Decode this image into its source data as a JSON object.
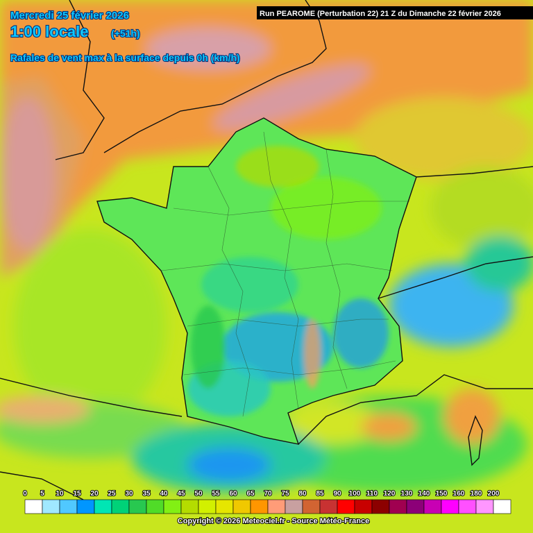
{
  "header": {
    "date": "Mercredi 25 février 2026",
    "time": "1:00 locale",
    "offset": "(+51h)",
    "parameter": "Rafales de vent max à la surface depuis 0h (km/h)",
    "run": "Run PEAROME (Perturbation 22) 21 Z du Dimanche 22 février 2026"
  },
  "legend": {
    "ticks": [
      0,
      5,
      10,
      15,
      20,
      25,
      30,
      35,
      40,
      45,
      50,
      55,
      60,
      65,
      70,
      75,
      80,
      85,
      90,
      100,
      110,
      120,
      130,
      140,
      150,
      160,
      180,
      200
    ],
    "colors": [
      "#ffffff",
      "#a0e8ff",
      "#50c8ff",
      "#0096ff",
      "#00e6b4",
      "#00d278",
      "#28c850",
      "#50dc28",
      "#82f014",
      "#b4dc00",
      "#d2f000",
      "#e6e600",
      "#f0c800",
      "#ff9600",
      "#ff9c78",
      "#c8a0a0",
      "#d26432",
      "#c83232",
      "#ff0000",
      "#c80000",
      "#8c0000",
      "#a00050",
      "#8c0078",
      "#c800b4",
      "#ff00ff",
      "#ff50ff",
      "#ff96ff",
      "#ffffff"
    ]
  },
  "footer": {
    "copyright": "Copyright © 2026 Meteociel.fr - Source Météo-France"
  }
}
